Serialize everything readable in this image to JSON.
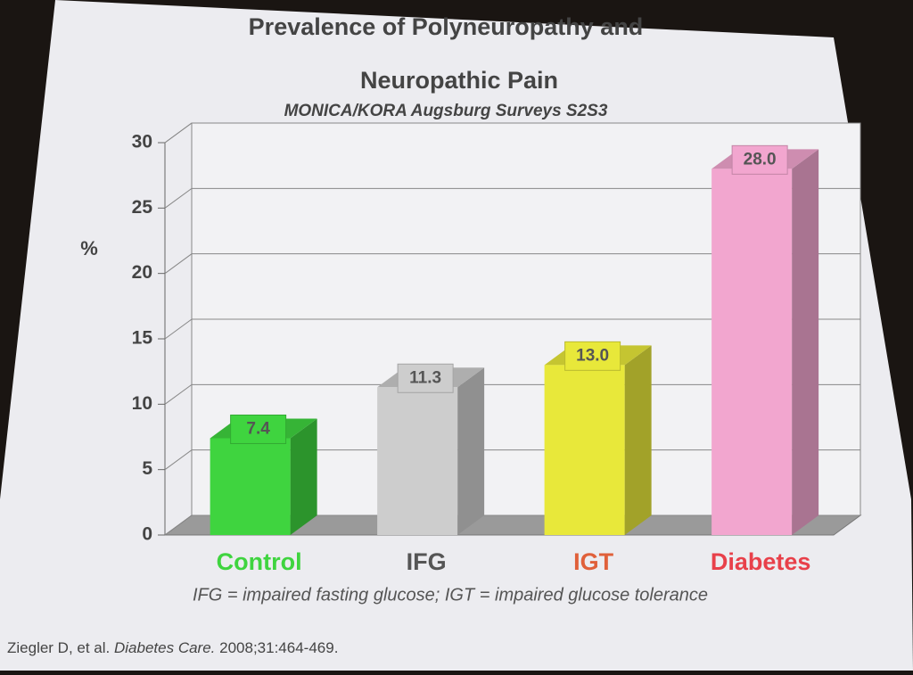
{
  "chart_data": {
    "type": "bar3d",
    "title": "Prevalence of Polyneuropathy and",
    "title_line2": "Neuropathic Pain",
    "subtitle": "MONICA/KORA Augsburg Surveys S2S3",
    "y_label": "%",
    "categories": [
      "Control",
      "IFG",
      "IGT",
      "Diabetes"
    ],
    "values": [
      7.4,
      11.3,
      13.0,
      28.0
    ],
    "value_labels": [
      "7.4",
      "11.3",
      "13.0",
      "28.0"
    ],
    "colors": [
      "#3fd43f",
      "#cdcdcd",
      "#e8e83a",
      "#f2a6cf"
    ],
    "category_colors": [
      "#3fd43f",
      "#555555",
      "#e0603a",
      "#e8404a"
    ],
    "ylim": [
      0,
      30
    ],
    "yticks": [
      0,
      5,
      10,
      15,
      20,
      25,
      30
    ],
    "grid": true,
    "footnote": "IFG = impaired fasting glucose; IGT = impaired glucose tolerance",
    "citation": {
      "authors": "Ziegler D, et al.",
      "journal": "Diabetes Care.",
      "details": "2008;31:464-469."
    }
  }
}
